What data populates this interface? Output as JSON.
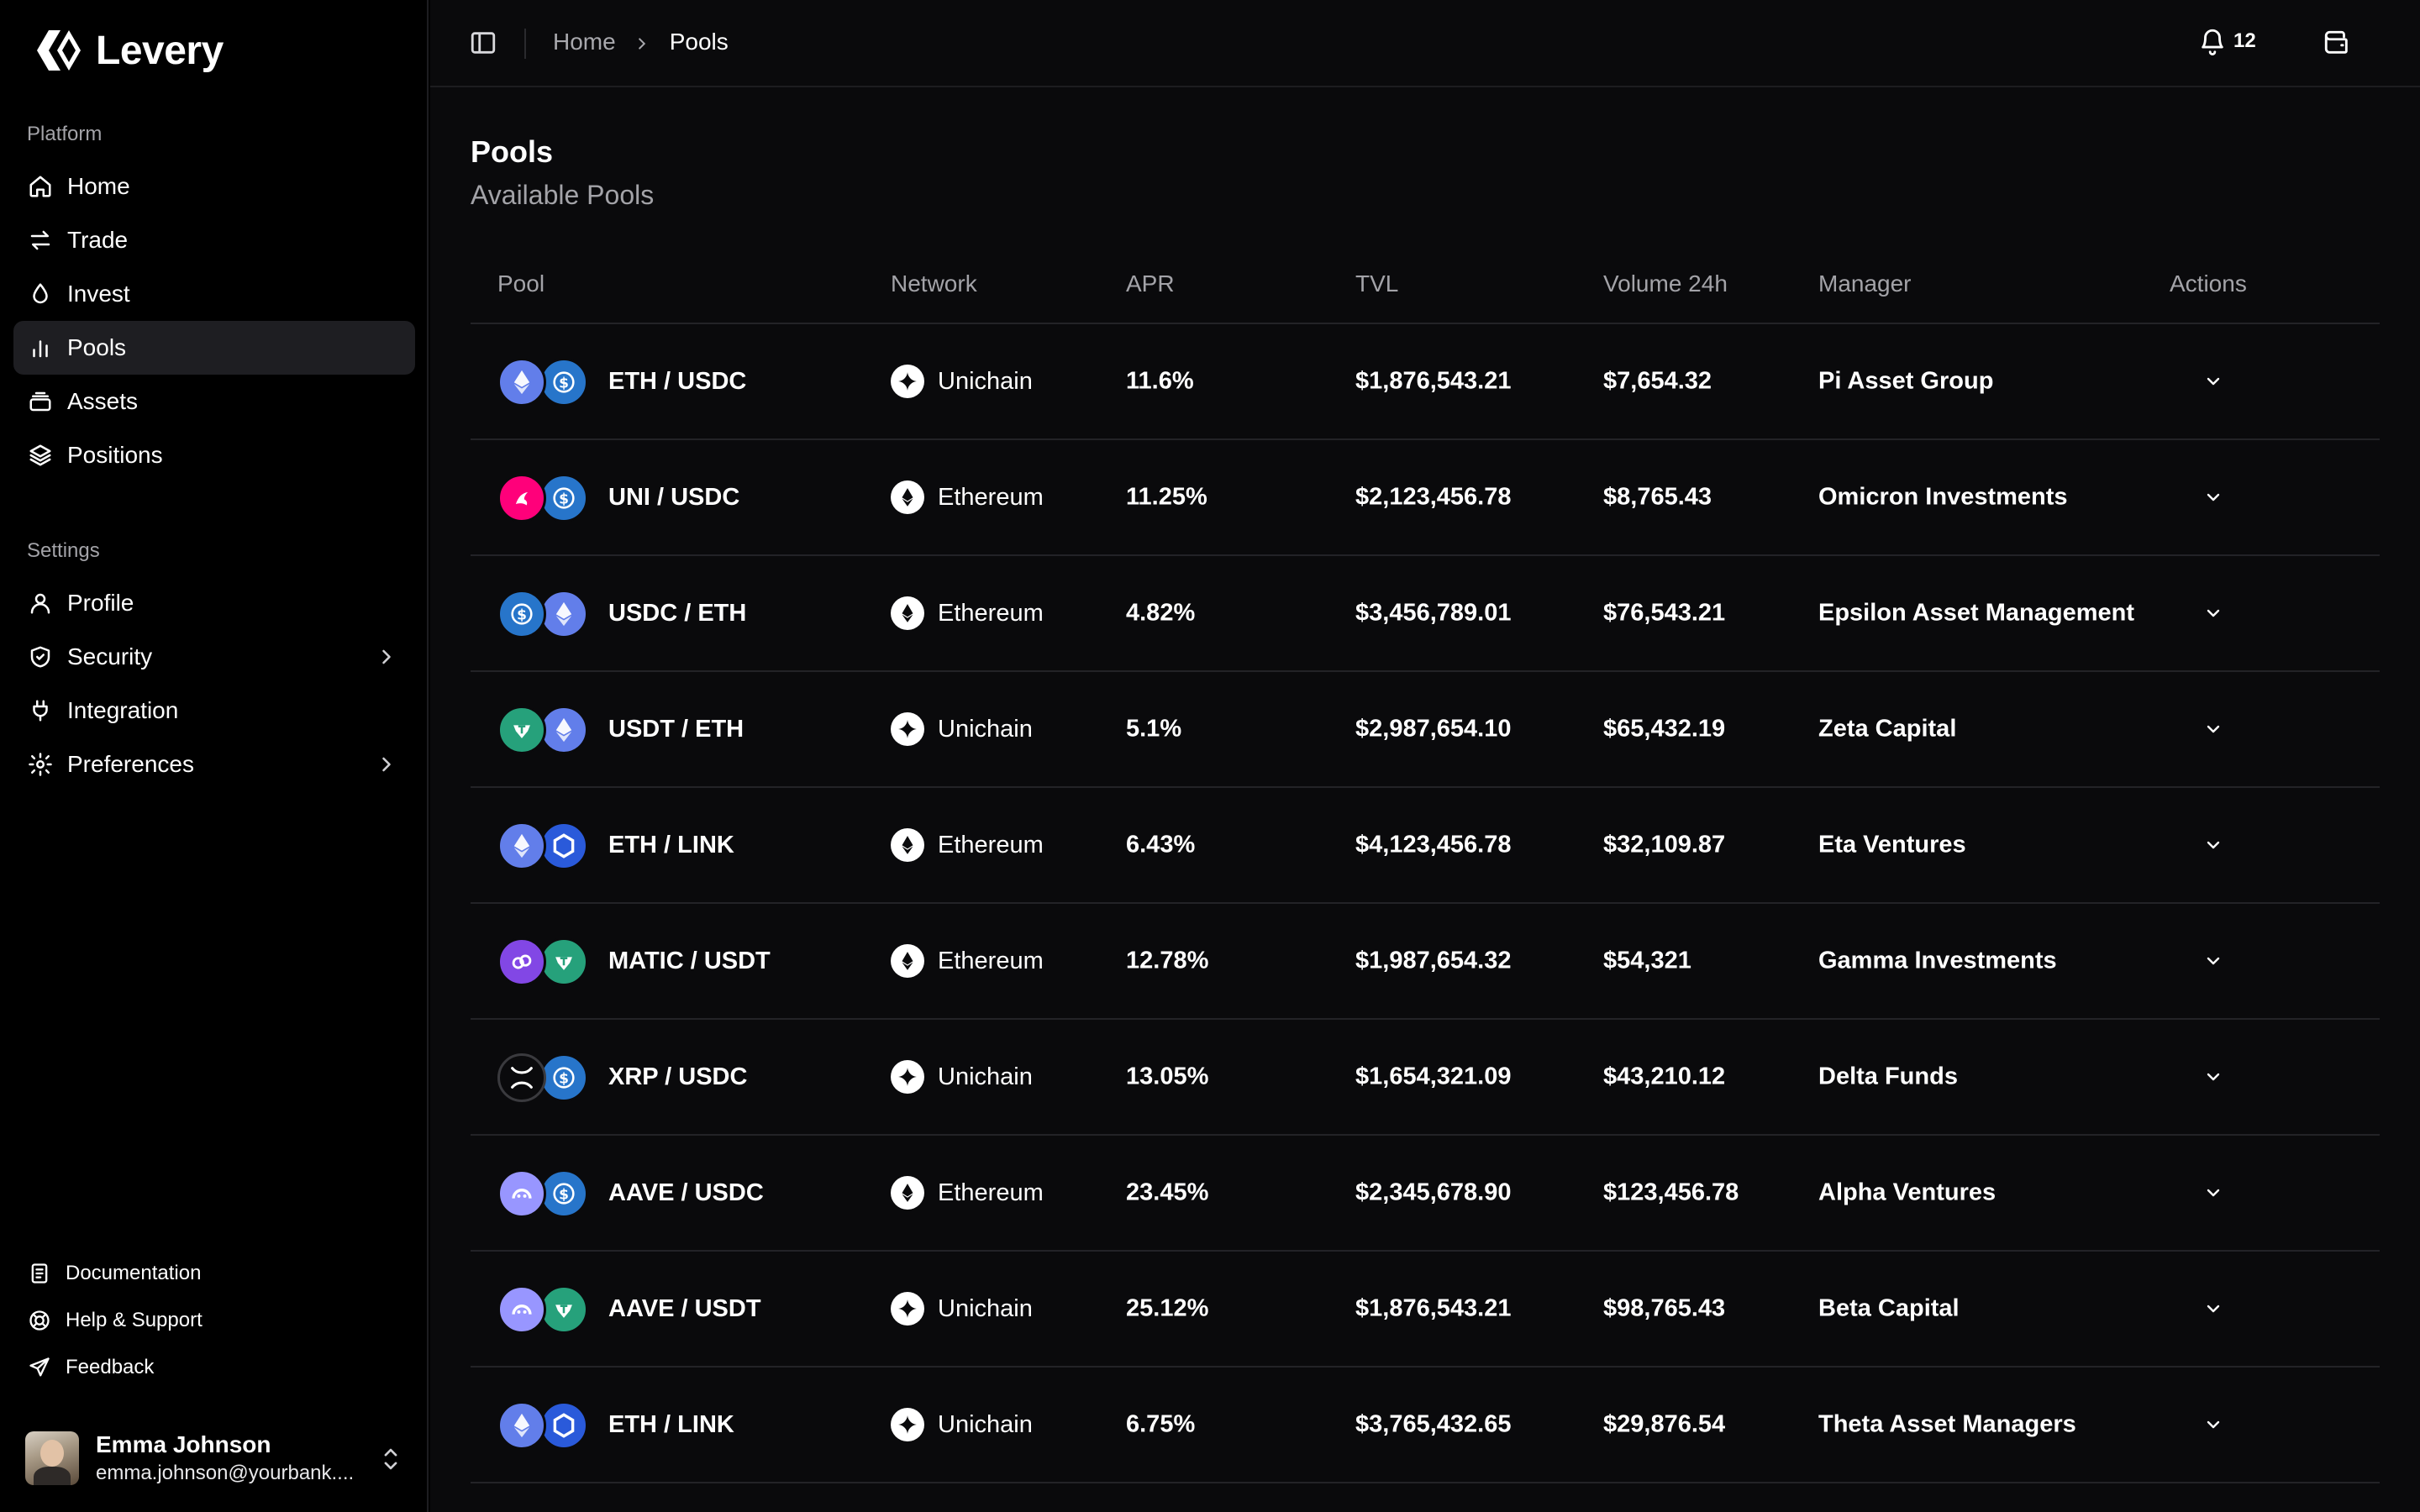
{
  "brand": {
    "name": "Levery"
  },
  "sidebar": {
    "platform_label": "Platform",
    "settings_label": "Settings",
    "platform_items": [
      {
        "label": "Home",
        "icon": "home-icon"
      },
      {
        "label": "Trade",
        "icon": "arrows-icon"
      },
      {
        "label": "Invest",
        "icon": "droplet-icon"
      },
      {
        "label": "Pools",
        "icon": "bar-chart-icon",
        "active": true
      },
      {
        "label": "Assets",
        "icon": "stack-icon"
      },
      {
        "label": "Positions",
        "icon": "layers-icon"
      }
    ],
    "settings_items": [
      {
        "label": "Profile",
        "icon": "user-icon"
      },
      {
        "label": "Security",
        "icon": "shield-icon",
        "has_submenu": true
      },
      {
        "label": "Integration",
        "icon": "plug-icon"
      },
      {
        "label": "Preferences",
        "icon": "gear-icon",
        "has_submenu": true
      }
    ],
    "footer_items": [
      {
        "label": "Documentation",
        "icon": "document-icon"
      },
      {
        "label": "Help & Support",
        "icon": "lifebuoy-icon"
      },
      {
        "label": "Feedback",
        "icon": "send-icon"
      }
    ],
    "user": {
      "name": "Emma Johnson",
      "email": "emma.johnson@yourbank...."
    }
  },
  "topbar": {
    "breadcrumb": {
      "home": "Home",
      "current": "Pools"
    },
    "notification_count": "12"
  },
  "page": {
    "title": "Pools",
    "subtitle": "Available Pools"
  },
  "table": {
    "columns": {
      "pool": "Pool",
      "network": "Network",
      "apr": "APR",
      "tvl": "TVL",
      "volume": "Volume 24h",
      "manager": "Manager",
      "actions": "Actions"
    },
    "rows": [
      {
        "pool": "ETH / USDC",
        "tokens": [
          "eth",
          "usdc"
        ],
        "network": "Unichain",
        "apr": "11.6%",
        "tvl": "$1,876,543.21",
        "volume": "$7,654.32",
        "manager": "Pi Asset Group"
      },
      {
        "pool": "UNI / USDC",
        "tokens": [
          "uni",
          "usdc"
        ],
        "network": "Ethereum",
        "apr": "11.25%",
        "tvl": "$2,123,456.78",
        "volume": "$8,765.43",
        "manager": "Omicron Investments"
      },
      {
        "pool": "USDC / ETH",
        "tokens": [
          "usdc",
          "eth"
        ],
        "network": "Ethereum",
        "apr": "4.82%",
        "tvl": "$3,456,789.01",
        "volume": "$76,543.21",
        "manager": "Epsilon Asset Management"
      },
      {
        "pool": "USDT / ETH",
        "tokens": [
          "usdt",
          "eth"
        ],
        "network": "Unichain",
        "apr": "5.1%",
        "tvl": "$2,987,654.10",
        "volume": "$65,432.19",
        "manager": "Zeta Capital"
      },
      {
        "pool": "ETH / LINK",
        "tokens": [
          "eth",
          "link"
        ],
        "network": "Ethereum",
        "apr": "6.43%",
        "tvl": "$4,123,456.78",
        "volume": "$32,109.87",
        "manager": "Eta Ventures"
      },
      {
        "pool": "MATIC / USDT",
        "tokens": [
          "matic",
          "usdt"
        ],
        "network": "Ethereum",
        "apr": "12.78%",
        "tvl": "$1,987,654.32",
        "volume": "$54,321",
        "manager": "Gamma Investments"
      },
      {
        "pool": "XRP / USDC",
        "tokens": [
          "xrp",
          "usdc"
        ],
        "network": "Unichain",
        "apr": "13.05%",
        "tvl": "$1,654,321.09",
        "volume": "$43,210.12",
        "manager": "Delta Funds"
      },
      {
        "pool": "AAVE / USDC",
        "tokens": [
          "aave",
          "usdc"
        ],
        "network": "Ethereum",
        "apr": "23.45%",
        "tvl": "$2,345,678.90",
        "volume": "$123,456.78",
        "manager": "Alpha Ventures"
      },
      {
        "pool": "AAVE / USDT",
        "tokens": [
          "aave",
          "usdt"
        ],
        "network": "Unichain",
        "apr": "25.12%",
        "tvl": "$1,876,543.21",
        "volume": "$98,765.43",
        "manager": "Beta Capital"
      },
      {
        "pool": "ETH / LINK",
        "tokens": [
          "eth",
          "link"
        ],
        "network": "Unichain",
        "apr": "6.75%",
        "tvl": "$3,765,432.65",
        "volume": "$29,876.54",
        "manager": "Theta Asset Managers"
      }
    ]
  }
}
